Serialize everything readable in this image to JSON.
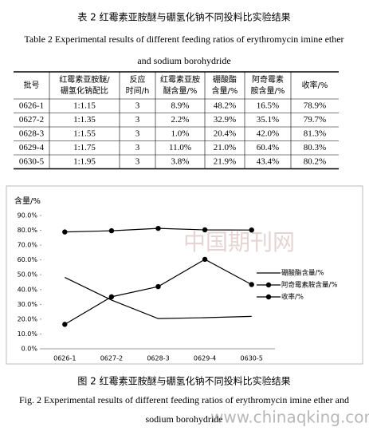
{
  "table_caption_cn": "表 2  红霉素亚胺醚与硼氢化钠不同投料比实验结果",
  "table_caption_en": [
    "Table 2 Experimental results of different feeding ratios of erythromycin imine ether",
    "and sodium borohydride"
  ],
  "table": {
    "headers": [
      [
        "批号"
      ],
      [
        "红霉素亚胺醚/",
        "硼氢化钠配比"
      ],
      [
        "反应",
        "时间/h"
      ],
      [
        "红霉素亚胺",
        "醚含量/%"
      ],
      [
        "硼酸酯",
        "含量/%"
      ],
      [
        "阿奇霉素",
        "胺含量/%"
      ],
      [
        "收率/%"
      ]
    ],
    "rows": [
      [
        "0626-1",
        "1:1.15",
        "3",
        "8.9%",
        "48.2%",
        "16.5%",
        "78.9%"
      ],
      [
        "0627-2",
        "1:1.35",
        "3",
        "2.2%",
        "32.9%",
        "35.1%",
        "79.7%"
      ],
      [
        "0628-3",
        "1:1.55",
        "3",
        "1.0%",
        "20.4%",
        "42.0%",
        "81.3%"
      ],
      [
        "0629-4",
        "1:1.75",
        "3",
        "11.0%",
        "21.0%",
        "60.4%",
        "80.3%"
      ],
      [
        "0630-5",
        "1:1.95",
        "3",
        "3.8%",
        "21.9%",
        "43.4%",
        "80.2%"
      ]
    ]
  },
  "chart_data": {
    "type": "line",
    "ylabel": "含量/%",
    "categories": [
      "0626-1",
      "0627-2",
      "0628-3",
      "0629-4",
      "0630-5"
    ],
    "series": [
      {
        "name": "硼酸酯含量/%",
        "color": "#000000",
        "marker": false,
        "values": [
          48.2,
          32.9,
          20.4,
          21.0,
          21.9
        ]
      },
      {
        "name": "阿奇霉素胺含量/%",
        "color": "#000000",
        "marker": true,
        "values": [
          16.5,
          35.1,
          42.0,
          60.4,
          43.4
        ]
      },
      {
        "name": "收率/%",
        "color": "#000000",
        "marker": true,
        "values": [
          78.9,
          79.7,
          81.3,
          80.3,
          80.2
        ]
      }
    ],
    "ylim": [
      0,
      90
    ],
    "yticks": [
      {
        "value": 0,
        "label": "0.0%"
      },
      {
        "value": 10,
        "label": "10.0%"
      },
      {
        "value": 20,
        "label": "20.0%"
      },
      {
        "value": 30,
        "label": "30.0%"
      },
      {
        "value": 40,
        "label": "40.0%"
      },
      {
        "value": 50,
        "label": "50.0%"
      },
      {
        "value": 60,
        "label": "60.0%"
      },
      {
        "value": 70,
        "label": "70.0%"
      },
      {
        "value": 80,
        "label": "80.0%"
      },
      {
        "value": 90,
        "label": "90.0%"
      }
    ],
    "grid": false,
    "legend": "right"
  },
  "figure_caption_cn": "图 2  红霉素亚胺醚与硼氢化钠不同投料比实验结果",
  "figure_caption_en": [
    "Fig. 2 Experimental results of different feeding ratios of erythromycin imine ether and",
    "sodium borohydride"
  ],
  "watermark": [
    "中国期刊网",
    "www.chinaqking.com"
  ]
}
